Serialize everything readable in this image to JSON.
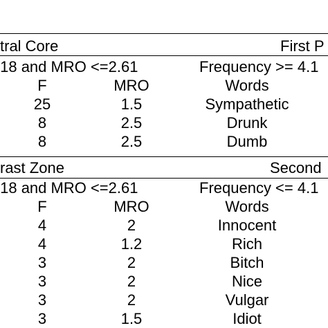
{
  "top_section": {
    "left_title": "tral Core",
    "right_title": "First P",
    "left_criteria": ".18 and MRO <=2.61",
    "right_criteria": "Frequency >= 4.1",
    "headers": {
      "f": "F",
      "mro": "MRO",
      "words": "Words"
    },
    "rows": [
      {
        "f": "25",
        "mro": "1.5",
        "word": "Sympathetic"
      },
      {
        "f": "8",
        "mro": "2.5",
        "word": "Drunk"
      },
      {
        "f": "8",
        "mro": "2.5",
        "word": "Dumb"
      }
    ]
  },
  "bottom_section": {
    "left_title": "rast Zone",
    "right_title": "Second",
    "left_criteria": ".18 and MRO <=2.61",
    "right_criteria": "Frequency <= 4.1",
    "headers": {
      "f": "F",
      "mro": "MRO",
      "words": "Words"
    },
    "rows": [
      {
        "f": "4",
        "mro": "2",
        "word": "Innocent"
      },
      {
        "f": "4",
        "mro": "1.2",
        "word": "Rich"
      },
      {
        "f": "3",
        "mro": "2",
        "word": "Bitch"
      },
      {
        "f": "3",
        "mro": "2",
        "word": "Nice"
      },
      {
        "f": "3",
        "mro": "2",
        "word": "Vulgar"
      },
      {
        "f": "3",
        "mro": "1.5",
        "word": "Idiot"
      }
    ]
  }
}
